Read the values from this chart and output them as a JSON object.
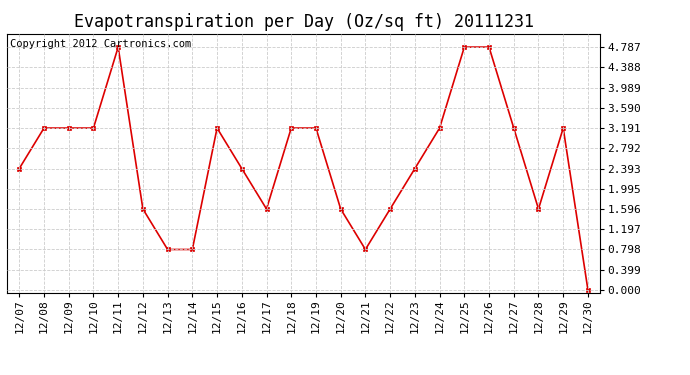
{
  "title": "Evapotranspiration per Day (Oz/sq ft) 20111231",
  "copyright": "Copyright 2012 Cartronics.com",
  "dates": [
    "12/07",
    "12/08",
    "12/09",
    "12/10",
    "12/11",
    "12/12",
    "12/13",
    "12/14",
    "12/15",
    "12/16",
    "12/17",
    "12/18",
    "12/19",
    "12/20",
    "12/21",
    "12/22",
    "12/23",
    "12/24",
    "12/25",
    "12/26",
    "12/27",
    "12/28",
    "12/29",
    "12/30"
  ],
  "values": [
    2.393,
    3.191,
    3.191,
    3.191,
    4.787,
    1.596,
    0.798,
    0.798,
    3.191,
    2.393,
    1.596,
    3.191,
    3.191,
    1.596,
    0.798,
    1.596,
    2.393,
    3.191,
    4.787,
    4.787,
    3.191,
    1.596,
    3.191,
    0.0
  ],
  "line_color": "#dd0000",
  "marker_color": "#dd0000",
  "bg_color": "#ffffff",
  "grid_color": "#cccccc",
  "yticks": [
    0.0,
    0.399,
    0.798,
    1.197,
    1.596,
    1.995,
    2.393,
    2.792,
    3.191,
    3.59,
    3.989,
    4.388,
    4.787
  ],
  "title_fontsize": 12,
  "tick_fontsize": 8,
  "copyright_fontsize": 7.5
}
